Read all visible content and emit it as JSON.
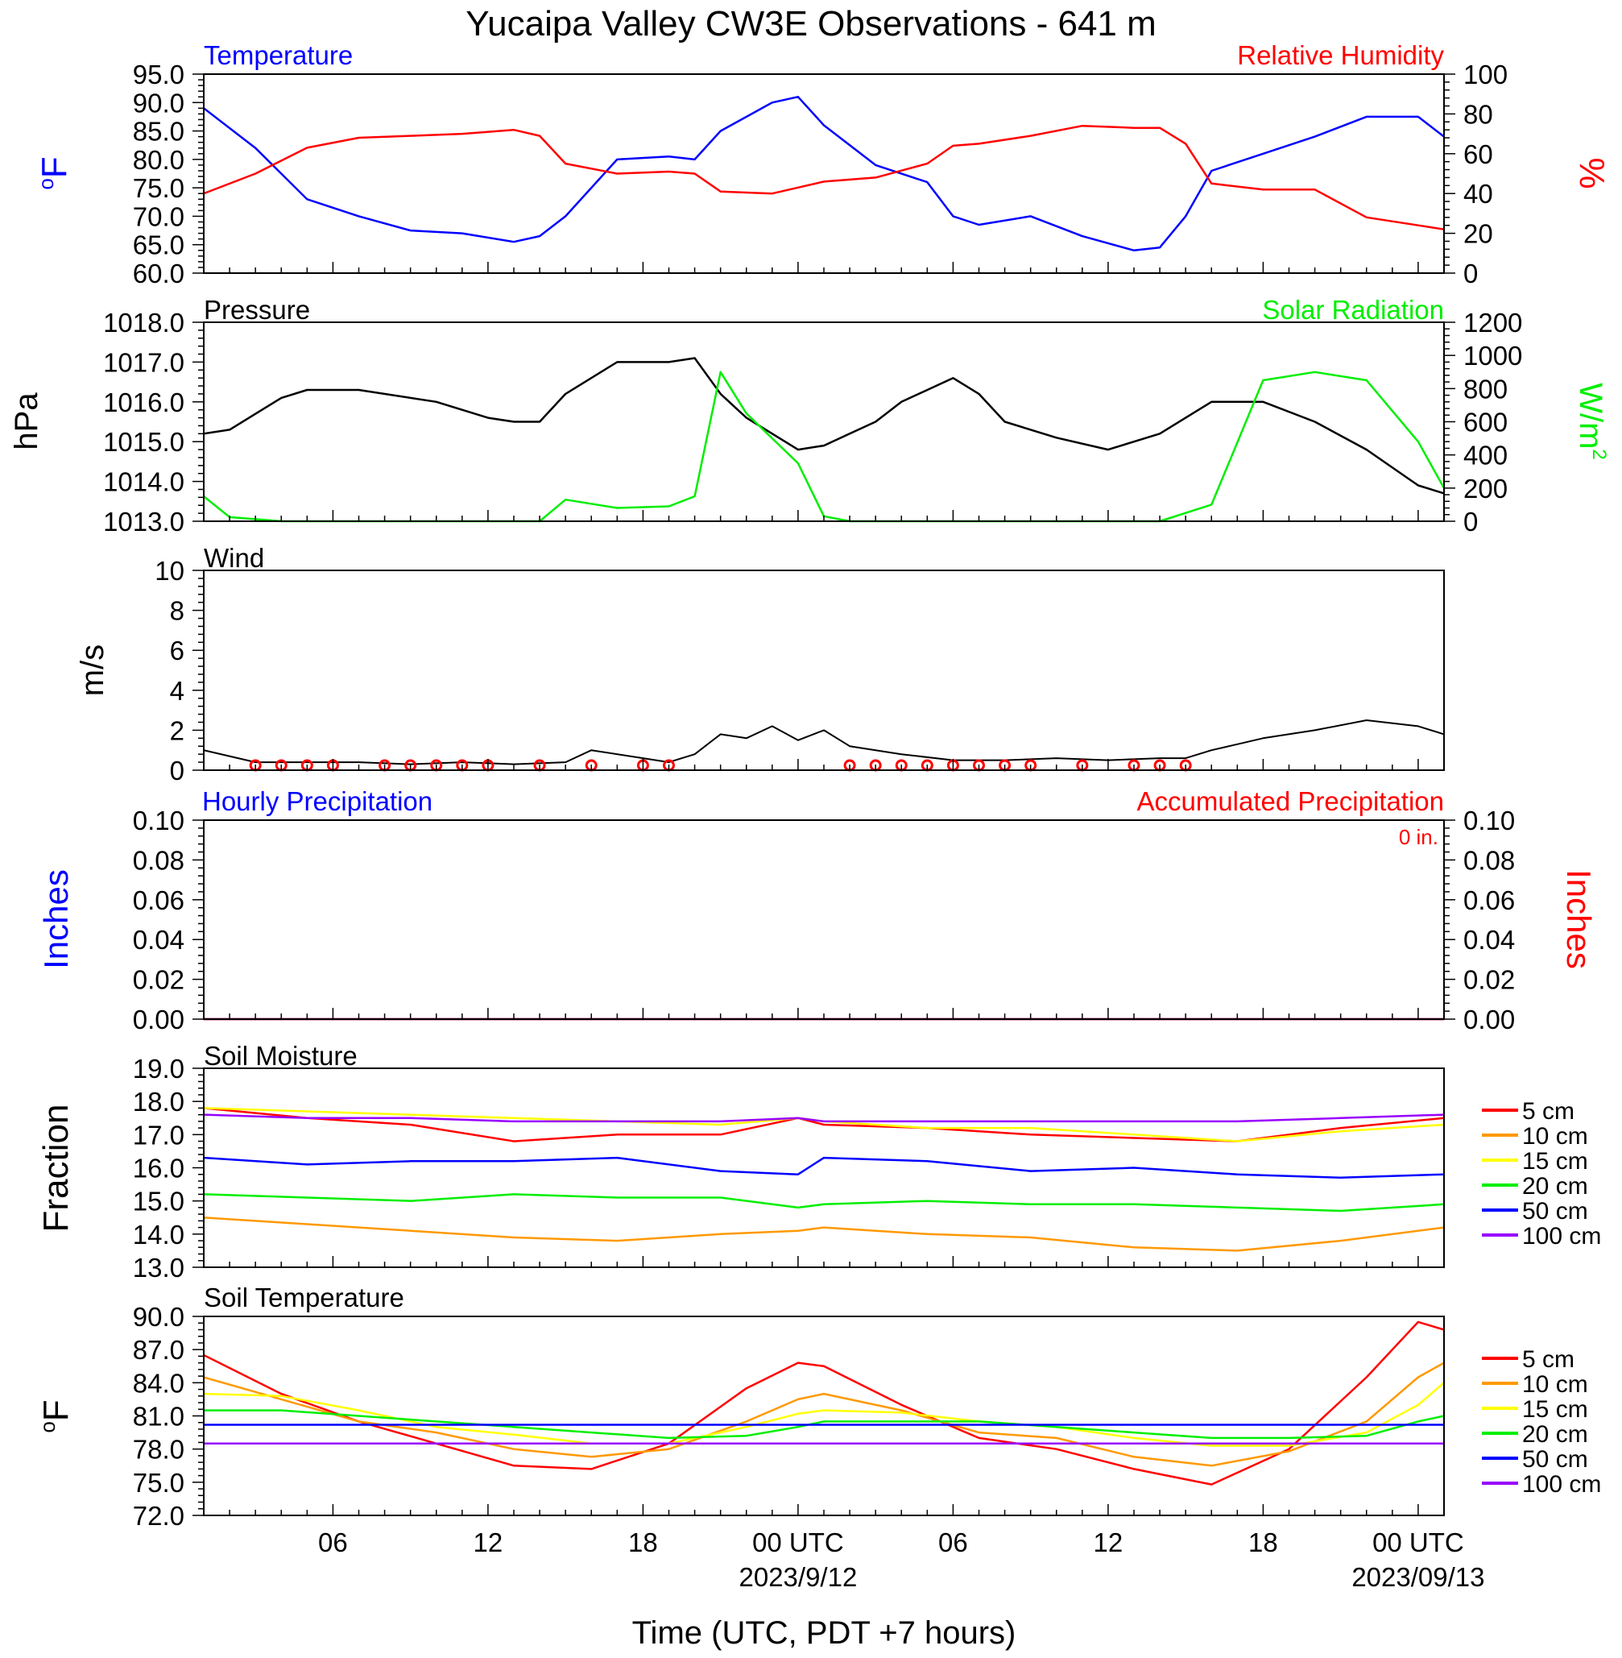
{
  "title": "Yucaipa Valley CW3E Observations - 641 m",
  "x_axis": {
    "label": "Time (UTC, PDT +7 hours)",
    "tick_labels": [
      "06",
      "12",
      "18",
      "00 UTC",
      "06",
      "12",
      "18",
      "00 UTC"
    ],
    "date_labels": [
      "2023/9/12",
      "2023/09/13"
    ],
    "range_hours": [
      1,
      49
    ]
  },
  "colors": {
    "temperature": "#0000ff",
    "humidity": "#ff0000",
    "pressure": "#000000",
    "solar": "#00ee00",
    "wind": "#000000",
    "barb": "#ff0000",
    "cm5": "#ff0000",
    "cm10": "#ff9900",
    "cm15": "#ffff00",
    "cm20": "#00ee00",
    "cm50": "#0000ff",
    "cm100": "#9900ff"
  },
  "panels": {
    "temp_rh": {
      "left_title": "Temperature",
      "right_title": "Relative Humidity",
      "left_unit": "oF",
      "right_unit": "%",
      "left_ticks": [
        "95.0",
        "90.0",
        "85.0",
        "80.0",
        "75.0",
        "70.0",
        "65.0",
        "60.0"
      ],
      "right_ticks": [
        "100",
        "80",
        "60",
        "40",
        "20",
        "0"
      ]
    },
    "pressure_solar": {
      "left_title": "Pressure",
      "right_title": "Solar Radiation",
      "left_unit": "hPa",
      "right_unit": "W/m2",
      "left_ticks": [
        "1018.0",
        "1017.0",
        "1016.0",
        "1015.0",
        "1014.0",
        "1013.0"
      ],
      "right_ticks": [
        "1200",
        "1000",
        "800",
        "600",
        "400",
        "200",
        "0"
      ]
    },
    "wind": {
      "left_title": "Wind",
      "left_unit": "m/s",
      "left_ticks": [
        "10",
        "8",
        "6",
        "4",
        "2",
        "0"
      ]
    },
    "precip": {
      "left_title": "Hourly Precipitation",
      "right_title": "Accumulated Precipitation",
      "left_unit": "Inches",
      "right_unit": "Inches",
      "accum_text": "0 in.",
      "left_ticks": [
        "0.10",
        "0.08",
        "0.06",
        "0.04",
        "0.02",
        "0.00"
      ],
      "right_ticks": [
        "0.10",
        "0.08",
        "0.06",
        "0.04",
        "0.02",
        "0.00"
      ]
    },
    "soil_moisture": {
      "left_title": "Soil Moisture",
      "left_unit": "Fraction",
      "left_ticks": [
        "19.0",
        "18.0",
        "17.0",
        "16.0",
        "15.0",
        "14.0",
        "13.0"
      ],
      "legend": [
        "5 cm",
        "10 cm",
        "15 cm",
        "20 cm",
        "50 cm",
        "100 cm"
      ]
    },
    "soil_temp": {
      "left_title": "Soil Temperature",
      "left_unit": "oF",
      "left_ticks": [
        "90.0",
        "87.0",
        "84.0",
        "81.0",
        "78.0",
        "75.0",
        "72.0"
      ],
      "legend": [
        "5 cm",
        "10 cm",
        "15 cm",
        "20 cm",
        "50 cm",
        "100 cm"
      ]
    }
  },
  "chart_data": [
    {
      "type": "line",
      "title": "Temperature / Relative Humidity",
      "ylabel": "oF",
      "ylim": [
        60,
        95
      ],
      "y2label": "%",
      "y2lim": [
        0,
        100
      ],
      "x": [
        1,
        3,
        5,
        7,
        9,
        11,
        13,
        14,
        15,
        17,
        19,
        20,
        21,
        23,
        24,
        25,
        27,
        29,
        30,
        31,
        33,
        35,
        37,
        38,
        39,
        40,
        42,
        44,
        46,
        48,
        49
      ],
      "series": [
        {
          "name": "Temperature",
          "axis": "left",
          "values": [
            89,
            82,
            73,
            70,
            67.5,
            67,
            65.5,
            66.5,
            70,
            80,
            80.5,
            80,
            85,
            90,
            91,
            86,
            79,
            76,
            70,
            68.5,
            70,
            66.5,
            64,
            64.5,
            70,
            78,
            81,
            84,
            87.5,
            87.5,
            84
          ]
        },
        {
          "name": "Relative Humidity",
          "axis": "right",
          "values": [
            40,
            50,
            63,
            68,
            69,
            70,
            72,
            69,
            55,
            50,
            51,
            50,
            41,
            40,
            43,
            46,
            48,
            55,
            64,
            65,
            69,
            74,
            73,
            73,
            65,
            45,
            42,
            42,
            28,
            24,
            22
          ]
        }
      ]
    },
    {
      "type": "line",
      "title": "Pressure / Solar Radiation",
      "ylabel": "hPa",
      "ylim": [
        1013,
        1018
      ],
      "y2label": "W/m2",
      "y2lim": [
        0,
        1200
      ],
      "x": [
        1,
        2,
        4,
        5,
        7,
        10,
        12,
        13,
        14,
        15,
        17,
        19,
        20,
        21,
        22,
        23,
        24,
        25,
        26,
        27,
        28,
        30,
        31,
        32,
        34,
        36,
        38,
        40,
        42,
        44,
        46,
        48,
        49
      ],
      "series": [
        {
          "name": "Pressure",
          "axis": "left",
          "values": [
            1015.2,
            1015.3,
            1016.1,
            1016.3,
            1016.3,
            1016.0,
            1015.6,
            1015.5,
            1015.5,
            1016.2,
            1017.0,
            1017.0,
            1017.1,
            1016.2,
            1015.6,
            1015.2,
            1014.8,
            1014.9,
            1015.2,
            1015.5,
            1016.0,
            1016.6,
            1016.2,
            1015.5,
            1015.1,
            1014.8,
            1015.2,
            1016.0,
            1016.0,
            1015.5,
            1014.8,
            1013.9,
            1013.7
          ]
        },
        {
          "name": "Solar Radiation",
          "axis": "right",
          "values": [
            150,
            25,
            0,
            0,
            0,
            0,
            0,
            0,
            0,
            130,
            80,
            90,
            150,
            900,
            650,
            500,
            350,
            30,
            0,
            0,
            0,
            0,
            0,
            0,
            0,
            0,
            0,
            100,
            850,
            900,
            850,
            480,
            200
          ]
        }
      ]
    },
    {
      "type": "line",
      "title": "Wind",
      "ylabel": "m/s",
      "ylim": [
        0,
        10
      ],
      "x": [
        1,
        3,
        5,
        7,
        9,
        11,
        13,
        15,
        16,
        18,
        19,
        20,
        21,
        22,
        23,
        24,
        25,
        26,
        28,
        30,
        32,
        34,
        36,
        38,
        39,
        40,
        41,
        42,
        44,
        46,
        48,
        49
      ],
      "series": [
        {
          "name": "Wind speed",
          "values": [
            1.0,
            0.4,
            0.4,
            0.4,
            0.3,
            0.4,
            0.3,
            0.4,
            1.0,
            0.6,
            0.4,
            0.8,
            1.8,
            1.6,
            2.2,
            1.5,
            2.0,
            1.2,
            0.8,
            0.5,
            0.5,
            0.6,
            0.5,
            0.6,
            0.6,
            1.0,
            1.3,
            1.6,
            2.0,
            2.5,
            2.2,
            1.8
          ]
        }
      ]
    },
    {
      "type": "line",
      "title": "Hourly Precipitation / Accumulated Precipitation",
      "ylabel": "Inches",
      "ylim": [
        0,
        0.1
      ],
      "y2label": "Inches",
      "y2lim": [
        0,
        0.1
      ],
      "x": [
        1,
        49
      ],
      "series": [
        {
          "name": "Hourly Precipitation",
          "axis": "left",
          "values": [
            0,
            0
          ]
        },
        {
          "name": "Accumulated Precipitation",
          "axis": "right",
          "values": [
            0,
            0
          ]
        }
      ]
    },
    {
      "type": "line",
      "title": "Soil Moisture",
      "ylabel": "Fraction",
      "ylim": [
        13,
        19
      ],
      "x": [
        1,
        5,
        9,
        13,
        17,
        21,
        24,
        25,
        29,
        33,
        37,
        41,
        45,
        49
      ],
      "series": [
        {
          "name": "5 cm",
          "values": [
            17.8,
            17.5,
            17.3,
            16.8,
            17.0,
            17.0,
            17.5,
            17.3,
            17.2,
            17.0,
            16.9,
            16.8,
            17.2,
            17.5
          ]
        },
        {
          "name": "10 cm",
          "values": [
            14.5,
            14.3,
            14.1,
            13.9,
            13.8,
            14.0,
            14.1,
            14.2,
            14.0,
            13.9,
            13.6,
            13.5,
            13.8,
            14.2
          ]
        },
        {
          "name": "15 cm",
          "values": [
            17.8,
            17.7,
            17.6,
            17.5,
            17.4,
            17.3,
            17.5,
            17.4,
            17.2,
            17.2,
            17.0,
            16.8,
            17.1,
            17.3
          ]
        },
        {
          "name": "20 cm",
          "values": [
            15.2,
            15.1,
            15.0,
            15.2,
            15.1,
            15.1,
            14.8,
            14.9,
            15.0,
            14.9,
            14.9,
            14.8,
            14.7,
            14.9
          ]
        },
        {
          "name": "50 cm",
          "values": [
            16.3,
            16.1,
            16.2,
            16.2,
            16.3,
            15.9,
            15.8,
            16.3,
            16.2,
            15.9,
            16.0,
            15.8,
            15.7,
            15.8
          ]
        },
        {
          "name": "100 cm",
          "values": [
            17.6,
            17.5,
            17.5,
            17.4,
            17.4,
            17.4,
            17.5,
            17.4,
            17.4,
            17.4,
            17.4,
            17.4,
            17.5,
            17.6
          ]
        }
      ]
    },
    {
      "type": "line",
      "title": "Soil Temperature",
      "ylabel": "oF",
      "ylim": [
        72,
        90
      ],
      "x": [
        1,
        4,
        7,
        10,
        13,
        16,
        19,
        22,
        24,
        25,
        28,
        31,
        34,
        37,
        40,
        43,
        46,
        48,
        49
      ],
      "series": [
        {
          "name": "5 cm",
          "values": [
            86.5,
            83,
            80.5,
            78.5,
            76.5,
            76.2,
            78.5,
            83.5,
            85.8,
            85.5,
            82,
            79,
            78,
            76.2,
            74.8,
            78,
            84.5,
            89.5,
            88.8
          ]
        },
        {
          "name": "10 cm",
          "values": [
            84.5,
            82.5,
            80.5,
            79.5,
            78,
            77.3,
            78,
            80.5,
            82.5,
            83,
            81.5,
            79.5,
            79,
            77.3,
            76.5,
            77.8,
            80.5,
            84.5,
            85.8
          ]
        },
        {
          "name": "15 cm",
          "values": [
            83,
            82.8,
            81.5,
            80,
            79.3,
            78.5,
            78.5,
            80,
            81.2,
            81.5,
            81.3,
            80.5,
            80,
            79,
            78.3,
            78.3,
            79.5,
            82,
            84
          ]
        },
        {
          "name": "20 cm",
          "values": [
            81.5,
            81.5,
            81,
            80.5,
            80,
            79.5,
            79,
            79.2,
            80,
            80.5,
            80.5,
            80.5,
            80,
            79.5,
            79,
            79,
            79.2,
            80.5,
            81
          ]
        },
        {
          "name": "50 cm",
          "values": [
            80.2,
            80.2,
            80.2,
            80.2,
            80.2,
            80.2,
            80.2,
            80.2,
            80.2,
            80.2,
            80.2,
            80.2,
            80.2,
            80.2,
            80.2,
            80.2,
            80.2,
            80.2,
            80.2
          ]
        },
        {
          "name": "100 cm",
          "values": [
            78.5,
            78.5,
            78.5,
            78.5,
            78.5,
            78.5,
            78.5,
            78.5,
            78.5,
            78.5,
            78.5,
            78.5,
            78.5,
            78.5,
            78.5,
            78.5,
            78.5,
            78.5,
            78.5
          ]
        }
      ]
    }
  ]
}
